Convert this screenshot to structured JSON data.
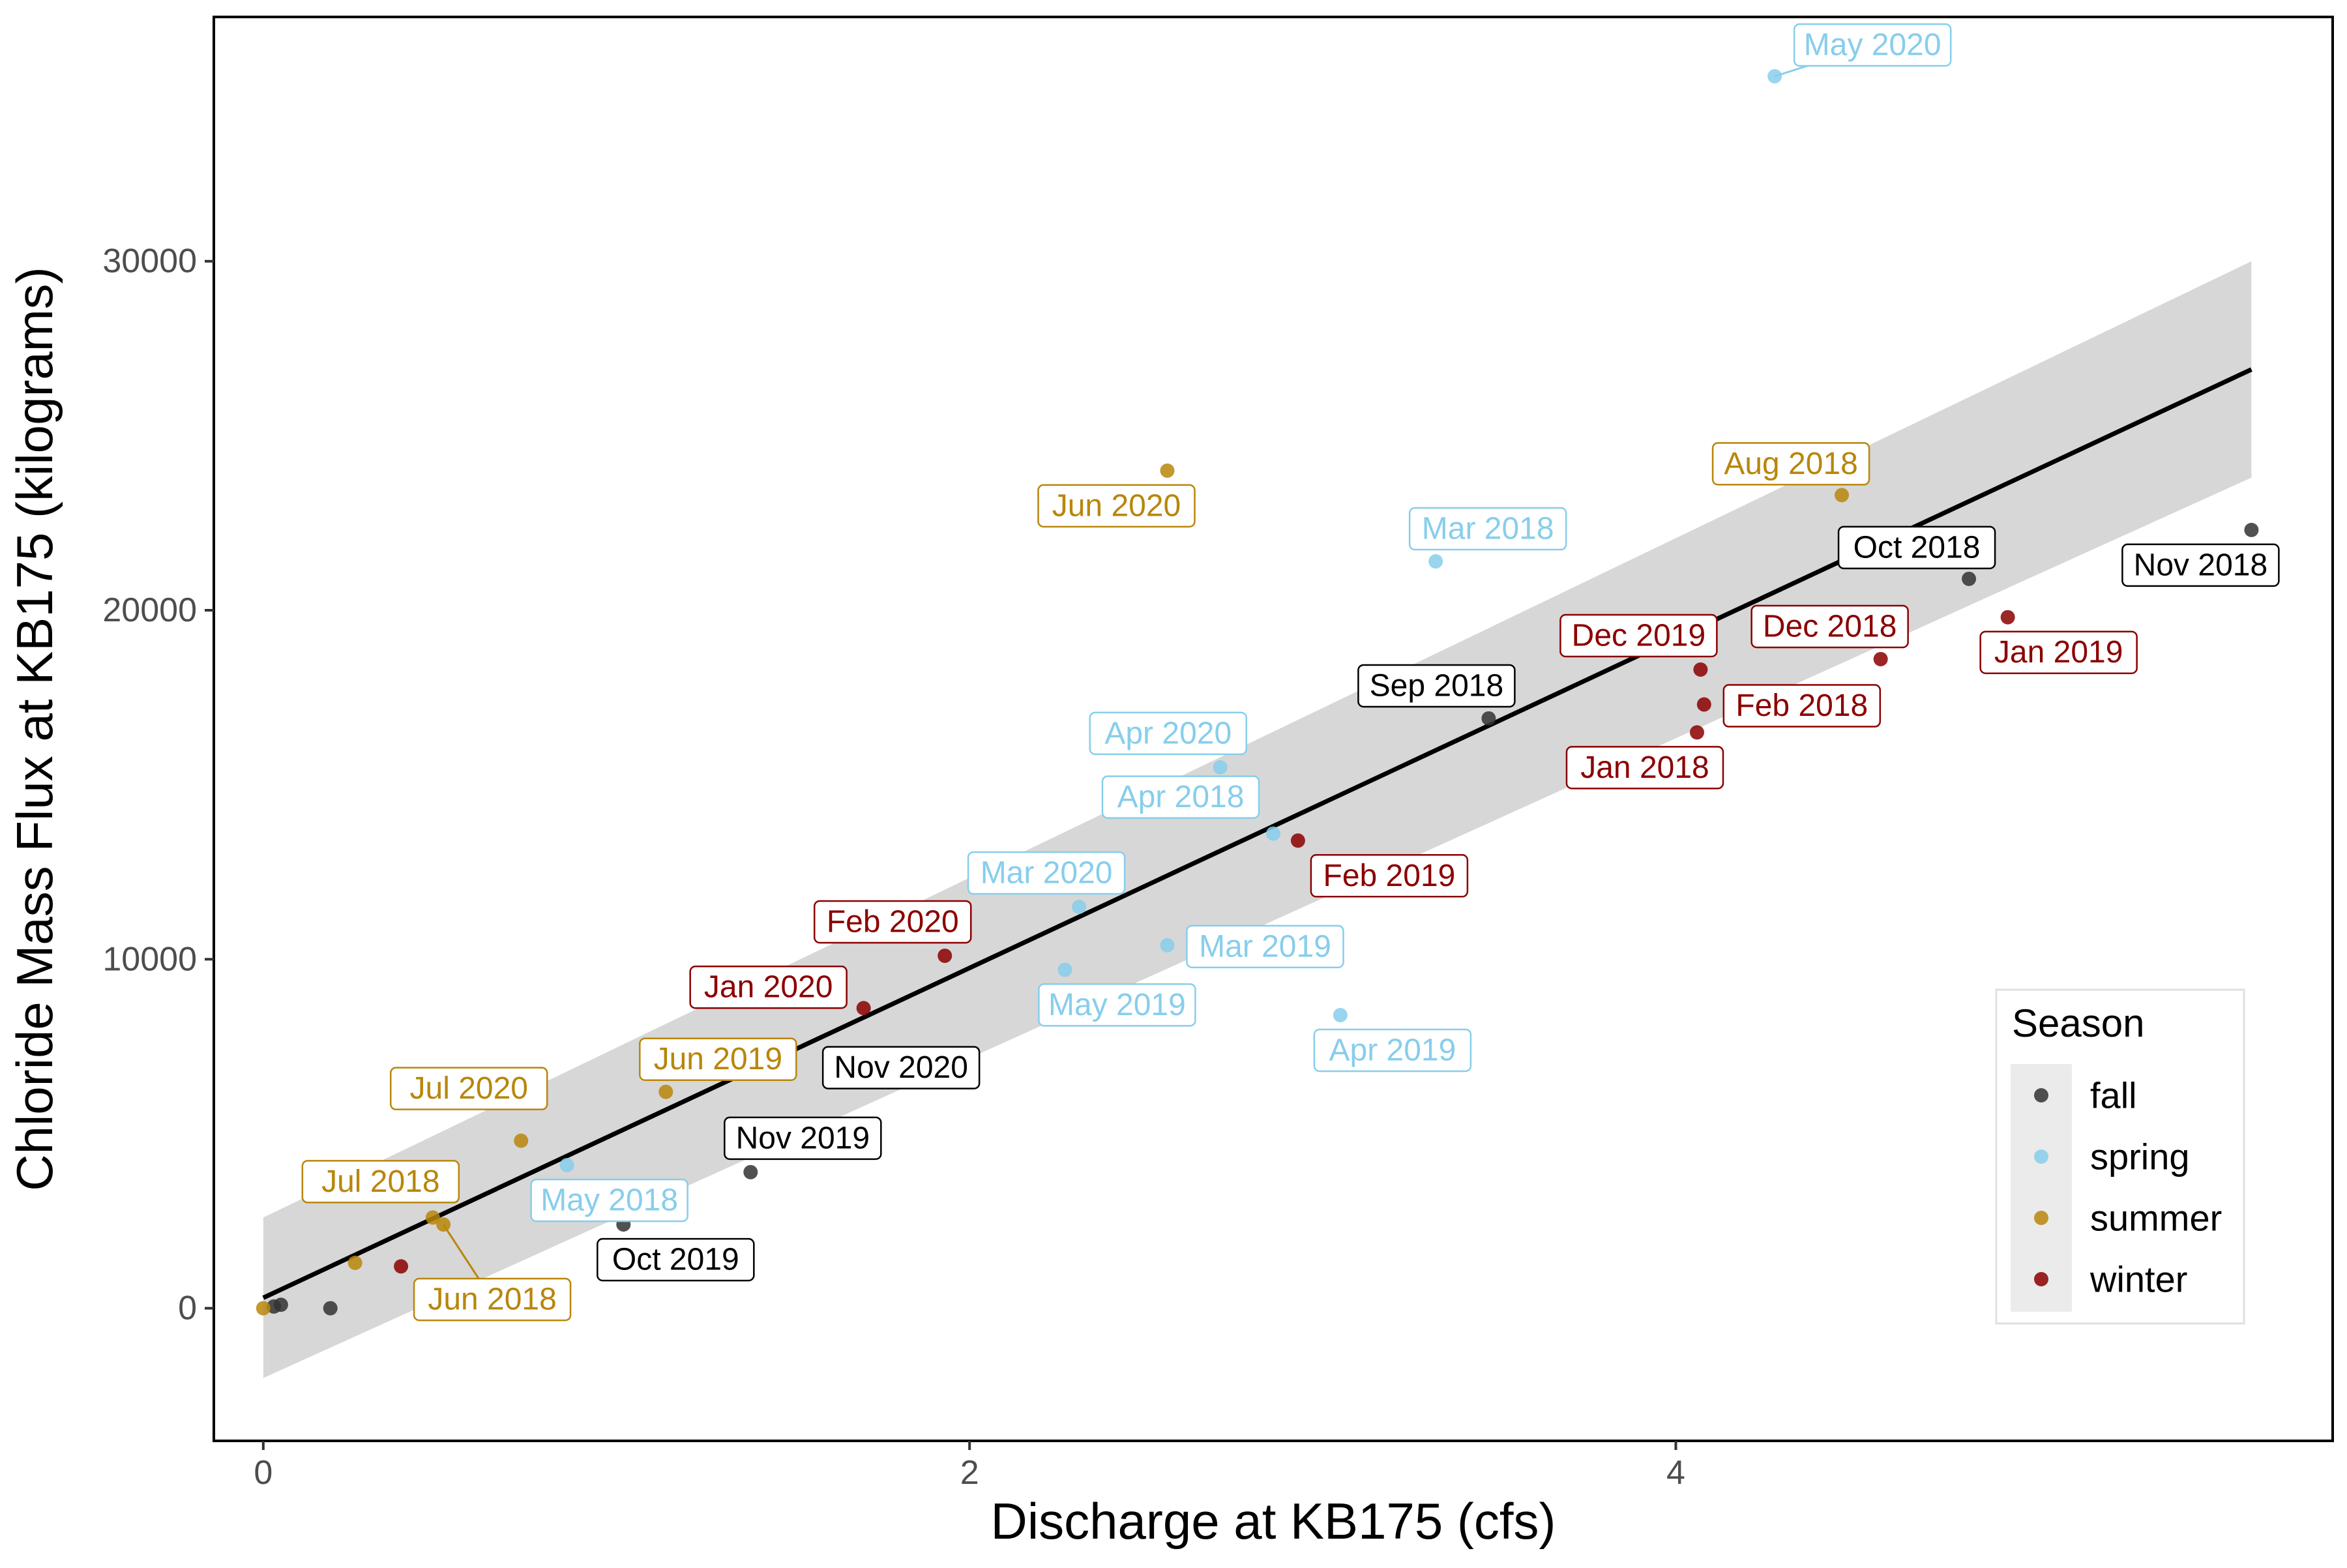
{
  "chart_data": {
    "type": "scatter",
    "xlabel": "Discharge at KB175 (cfs)",
    "ylabel": "Chloride Mass Flux at KB175 (kilograms)",
    "xlim": [
      -0.14,
      5.86
    ],
    "ylim": [
      -3800,
      37000
    ],
    "x_ticks": [
      0,
      2,
      4
    ],
    "y_ticks": [
      0,
      10000,
      20000,
      30000
    ],
    "grid": false,
    "legend": {
      "title": "Season",
      "position": "bottom-right",
      "entries": [
        {
          "name": "fall",
          "color": "#333333"
        },
        {
          "name": "spring",
          "color": "#87CEEB"
        },
        {
          "name": "summer",
          "color": "#B8860B"
        },
        {
          "name": "winter",
          "color": "#8B0000"
        }
      ]
    },
    "colors": {
      "fall": "#333333",
      "spring": "#87CEEB",
      "summer": "#B8860B",
      "winter": "#8B0000",
      "fall_label": "#000000",
      "spring_label": "#87CEEB",
      "summer_label": "#B8860B",
      "winter_label": "#8B0000",
      "regression_line": "#000000",
      "confidence_band": "#D3D3D3"
    },
    "regression": {
      "x": [
        0,
        5.63
      ],
      "y": [
        300,
        26900
      ],
      "ci_lower": [
        -2000,
        23800
      ],
      "ci_upper": [
        2600,
        30000
      ]
    },
    "points": [
      {
        "x": 4.28,
        "y": 35300,
        "season": "spring",
        "label": "May 2020"
      },
      {
        "x": 2.56,
        "y": 24000,
        "season": "summer",
        "label": "Jun 2020"
      },
      {
        "x": 3.32,
        "y": 21400,
        "season": "spring",
        "label": "Mar 2018"
      },
      {
        "x": 4.47,
        "y": 23300,
        "season": "summer",
        "label": "Aug 2018"
      },
      {
        "x": 4.83,
        "y": 20900,
        "season": "fall",
        "label": "Oct 2018"
      },
      {
        "x": 5.63,
        "y": 22300,
        "season": "fall",
        "label": "Nov 2018"
      },
      {
        "x": 4.94,
        "y": 19800,
        "season": "winter",
        "label": "Jan 2019"
      },
      {
        "x": 4.58,
        "y": 18600,
        "season": "winter",
        "label": "Dec 2018"
      },
      {
        "x": 4.07,
        "y": 18300,
        "season": "winter",
        "label": "Dec 2019"
      },
      {
        "x": 4.08,
        "y": 17300,
        "season": "winter",
        "label": "Feb 2018"
      },
      {
        "x": 4.06,
        "y": 16500,
        "season": "winter",
        "label": "Jan 2018"
      },
      {
        "x": 3.47,
        "y": 16900,
        "season": "fall",
        "label": "Sep 2018"
      },
      {
        "x": 2.71,
        "y": 15500,
        "season": "spring",
        "label": "Apr 2020"
      },
      {
        "x": 2.86,
        "y": 13600,
        "season": "spring",
        "label": "Apr 2018"
      },
      {
        "x": 2.93,
        "y": 13400,
        "season": "winter",
        "label": "Feb 2019"
      },
      {
        "x": 2.31,
        "y": 11500,
        "season": "spring",
        "label": "Mar 2020"
      },
      {
        "x": 2.56,
        "y": 10400,
        "season": "spring",
        "label": "Mar 2019"
      },
      {
        "x": 2.27,
        "y": 9700,
        "season": "spring",
        "label": "May 2019"
      },
      {
        "x": 3.05,
        "y": 8400,
        "season": "spring",
        "label": "Apr 2019"
      },
      {
        "x": 1.93,
        "y": 10100,
        "season": "winter",
        "label": "Feb 2020"
      },
      {
        "x": 1.7,
        "y": 8600,
        "season": "winter",
        "label": "Jan 2020"
      },
      {
        "x": 1.14,
        "y": 6200,
        "season": "summer",
        "label": "Jun 2019"
      },
      {
        "x": 0.73,
        "y": 4800,
        "season": "summer",
        "label": "Jul 2020"
      },
      {
        "x": 1.38,
        "y": 3900,
        "season": "fall",
        "label": "Nov 2019"
      },
      {
        "x": 0.86,
        "y": 4100,
        "season": "spring",
        "label": "May 2018"
      },
      {
        "x": 0.48,
        "y": 2600,
        "season": "summer",
        "label": "Jul 2018"
      },
      {
        "x": 0.51,
        "y": 2400,
        "season": "summer",
        "label": "Jun 2018"
      },
      {
        "x": 1.02,
        "y": 2400,
        "season": "fall",
        "label": "Oct 2019"
      },
      {
        "x": 0.39,
        "y": 1200,
        "season": "winter",
        "label": ""
      },
      {
        "x": 0.26,
        "y": 1300,
        "season": "summer",
        "label": ""
      },
      {
        "x": 0.19,
        "y": 0,
        "season": "fall",
        "label": ""
      },
      {
        "x": 0.05,
        "y": 100,
        "season": "fall",
        "label": ""
      },
      {
        "x": 0.03,
        "y": 50,
        "season": "fall",
        "label": ""
      },
      {
        "x": 0.0,
        "y": 0,
        "season": "summer",
        "label": ""
      }
    ],
    "labels_only": [
      {
        "x": 2.0,
        "y": 7080,
        "season": "fall",
        "label": "Nov 2020"
      }
    ]
  }
}
